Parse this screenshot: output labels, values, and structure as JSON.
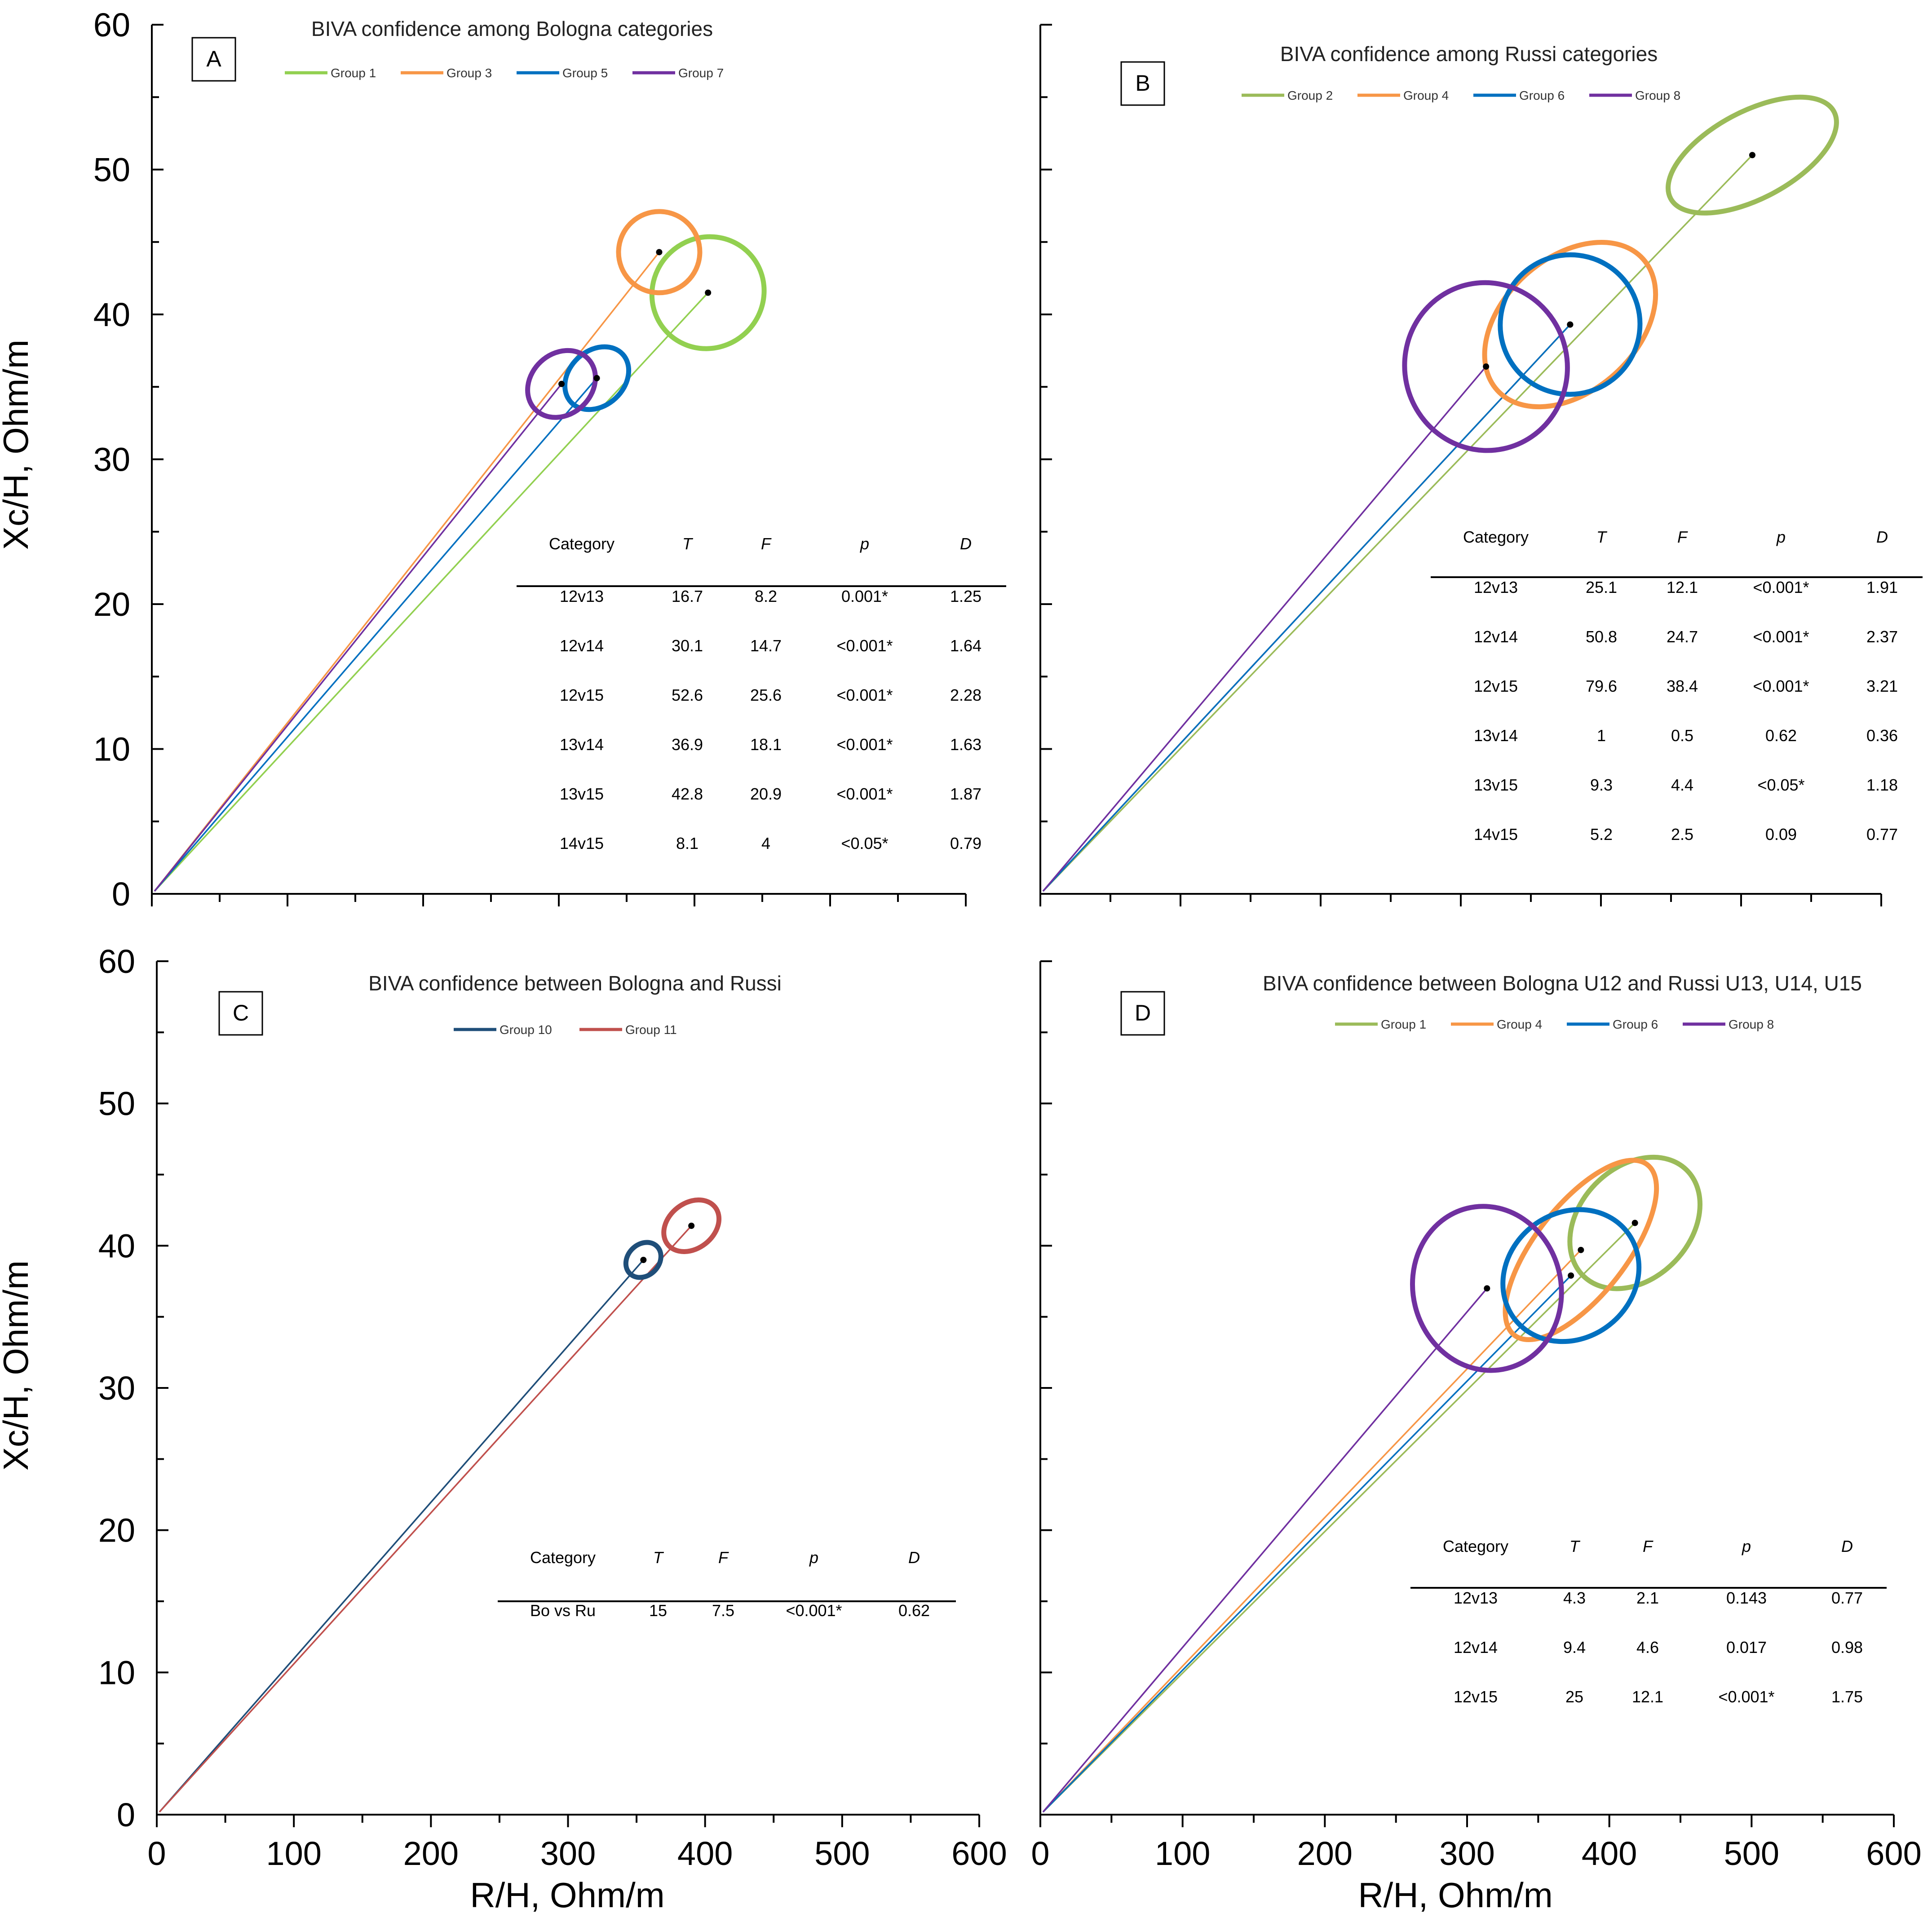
{
  "figure": {
    "ylabel_top": "Xc/H, Ohm/m",
    "ylabel_bottom": "Xc/H, Ohm/m",
    "xlabel_left": "R/H, Ohm/m",
    "xlabel_right": "R/H, Ohm/m"
  },
  "chart_data": [
    {
      "type": "scatter",
      "panel": "A",
      "title": "BIVA confidence among Bologna categories",
      "xlabel": "",
      "ylabel": "Xc/H, Ohm/m",
      "xlim": [
        0,
        600
      ],
      "ylim": [
        0,
        60
      ],
      "x_ticks": [],
      "y_ticks": [
        "0",
        "10",
        "20",
        "30",
        "40",
        "50",
        "60"
      ],
      "legend_position": "top",
      "series": [
        {
          "name": "Group 1",
          "color": "#92d050",
          "center": [
            410,
            41.5
          ],
          "rx": 42,
          "ry": 3.8,
          "angle_deg": 43
        },
        {
          "name": "Group 3",
          "color": "#f79646",
          "center": [
            374,
            44.3
          ],
          "rx": 30,
          "ry": 2.8,
          "angle_deg": 43
        },
        {
          "name": "Group 5",
          "color": "#0070c0",
          "center": [
            328,
            35.6
          ],
          "rx": 26,
          "ry": 1.9,
          "angle_deg": 43
        },
        {
          "name": "Group 7",
          "color": "#7030a0",
          "center": [
            302,
            35.2
          ],
          "rx": 27,
          "ry": 2.1,
          "angle_deg": 43
        }
      ],
      "table": {
        "headers": [
          "Category",
          "T",
          "F",
          "p",
          "D"
        ],
        "rows": [
          [
            "12v13",
            "16.7",
            "8.2",
            "0.001*",
            "1.25"
          ],
          [
            "12v14",
            "30.1",
            "14.7",
            "<0.001*",
            "1.64"
          ],
          [
            "12v15",
            "52.6",
            "25.6",
            "<0.001*",
            "2.28"
          ],
          [
            "13v14",
            "36.9",
            "18.1",
            "<0.001*",
            "1.63"
          ],
          [
            "13v15",
            "42.8",
            "20.9",
            "<0.001*",
            "1.87"
          ],
          [
            "14v15",
            "8.1",
            "4",
            "<0.05*",
            "0.79"
          ]
        ]
      }
    },
    {
      "type": "scatter",
      "panel": "B",
      "title": "BIVA confidence among Russi categories",
      "xlabel": "",
      "ylabel": "",
      "xlim": [
        0,
        600
      ],
      "ylim": [
        0,
        60
      ],
      "x_ticks": [],
      "y_ticks": [],
      "legend_position": "top",
      "series": [
        {
          "name": "Group 2",
          "color": "#9bbb59",
          "center": [
            508,
            51.0
          ],
          "rx": 66,
          "ry": 3.0,
          "angle_deg": 28
        },
        {
          "name": "Group 4",
          "color": "#f79646",
          "center": [
            378,
            39.3
          ],
          "rx": 70,
          "ry": 4.6,
          "angle_deg": 42
        },
        {
          "name": "Group 6",
          "color": "#0070c0",
          "center": [
            378,
            39.3
          ],
          "rx": 50,
          "ry": 4.8,
          "angle_deg": 38
        },
        {
          "name": "Group 8",
          "color": "#7030a0",
          "center": [
            318,
            36.4
          ],
          "rx": 58,
          "ry": 5.8,
          "angle_deg": 12
        }
      ],
      "table": {
        "headers": [
          "Category",
          "T",
          "F",
          "p",
          "D"
        ],
        "rows": [
          [
            "12v13",
            "25.1",
            "12.1",
            "<0.001*",
            "1.91"
          ],
          [
            "12v14",
            "50.8",
            "24.7",
            "<0.001*",
            "2.37"
          ],
          [
            "12v15",
            "79.6",
            "38.4",
            "<0.001*",
            "3.21"
          ],
          [
            "13v14",
            "1",
            "0.5",
            "0.62",
            "0.36"
          ],
          [
            "13v15",
            "9.3",
            "4.4",
            "<0.05*",
            "1.18"
          ],
          [
            "14v15",
            "5.2",
            "2.5",
            "0.09",
            "0.77"
          ]
        ]
      }
    },
    {
      "type": "scatter",
      "panel": "C",
      "title": "BIVA confidence between Bologna and Russi",
      "xlabel": "R/H, Ohm/m",
      "ylabel": "Xc/H, Ohm/m",
      "xlim": [
        0,
        600
      ],
      "ylim": [
        0,
        60
      ],
      "x_ticks": [
        "0",
        "100",
        "200",
        "300",
        "400",
        "500",
        "600"
      ],
      "y_ticks": [
        "0",
        "10",
        "20",
        "30",
        "40",
        "50",
        "60"
      ],
      "legend_position": "top",
      "series": [
        {
          "name": "Group 10",
          "color": "#1f4e79",
          "center": [
            355,
            39.0
          ],
          "rx": 14,
          "ry": 1.1,
          "angle_deg": 45
        },
        {
          "name": "Group 11",
          "color": "#c0504d",
          "center": [
            390,
            41.4
          ],
          "rx": 22,
          "ry": 1.6,
          "angle_deg": 38
        }
      ],
      "table": {
        "headers": [
          "Category",
          "T",
          "F",
          "p",
          "D"
        ],
        "rows": [
          [
            "Bo vs Ru",
            "15",
            "7.5",
            "<0.001*",
            "0.62"
          ]
        ]
      }
    },
    {
      "type": "scatter",
      "panel": "D",
      "title": "BIVA confidence between  Bologna U12 and Russi U13, U14, U15",
      "xlabel": "R/H, Ohm/m",
      "ylabel": "",
      "xlim": [
        0,
        600
      ],
      "ylim": [
        0,
        60
      ],
      "x_ticks": [
        "0",
        "100",
        "200",
        "300",
        "400",
        "500",
        "600"
      ],
      "y_ticks": [],
      "legend_position": "top",
      "series": [
        {
          "name": "Group 1",
          "color": "#9bbb59",
          "center": [
            418,
            41.6
          ],
          "rx": 52,
          "ry": 3.9,
          "angle_deg": 46
        },
        {
          "name": "Group 4",
          "color": "#f79646",
          "center": [
            380,
            39.7
          ],
          "rx": 76,
          "ry": 3.2,
          "angle_deg": 52
        },
        {
          "name": "Group 6",
          "color": "#0070c0",
          "center": [
            373,
            37.9
          ],
          "rx": 50,
          "ry": 4.4,
          "angle_deg": 38
        },
        {
          "name": "Group 8",
          "color": "#7030a0",
          "center": [
            314,
            37.0
          ],
          "rx": 52,
          "ry": 5.8,
          "angle_deg": 14
        }
      ],
      "table": {
        "headers": [
          "Category",
          "T",
          "F",
          "p",
          "D"
        ],
        "rows": [
          [
            "12v13",
            "4.3",
            "2.1",
            "0.143",
            "0.77"
          ],
          [
            "12v14",
            "9.4",
            "4.6",
            "0.017",
            "0.98"
          ],
          [
            "12v15",
            "25",
            "12.1",
            "<0.001*",
            "1.75"
          ]
        ]
      }
    }
  ]
}
